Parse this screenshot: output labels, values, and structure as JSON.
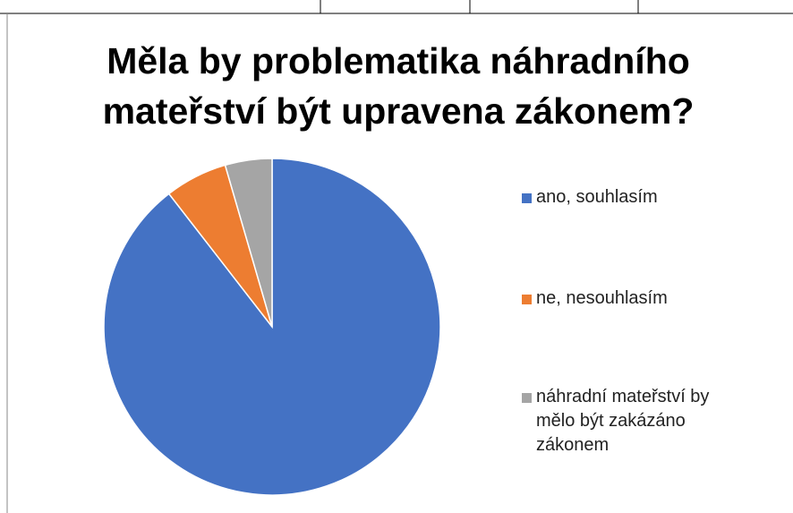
{
  "chart_data": {
    "type": "pie",
    "title": "Měla by problematika náhradního mateřství být upravena zákonem?",
    "categories": [
      "ano, souhlasím",
      "ne, nesouhlasím",
      "náhradní mateřství by mělo být zakázáno zákonem"
    ],
    "values": [
      89.5,
      6,
      4.5
    ],
    "colors": [
      "#4472c4",
      "#ed7d31",
      "#a5a5a5"
    ],
    "legend": "right"
  }
}
